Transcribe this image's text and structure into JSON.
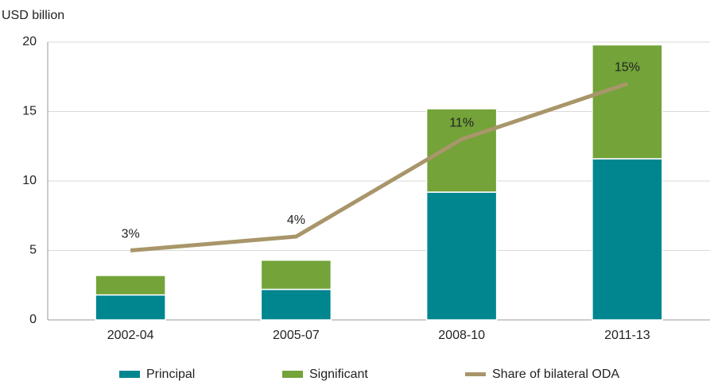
{
  "chart_data": {
    "type": "bar",
    "stacked": true,
    "y_label": "USD billion",
    "categories": [
      "2002-04",
      "2005-07",
      "2008-10",
      "2011-13"
    ],
    "series": [
      {
        "name": "Principal",
        "color": "#00868f",
        "values": [
          1.8,
          2.2,
          9.2,
          11.6
        ]
      },
      {
        "name": "Significant",
        "color": "#73a339",
        "values": [
          1.4,
          2.1,
          6.0,
          8.2
        ]
      },
      {
        "name": "Share of bilateral ODA",
        "color": "#a8966a",
        "type": "line",
        "axis": "y2",
        "values": [
          3,
          4,
          11,
          15
        ],
        "value_labels": [
          "3%",
          "4%",
          "11%",
          "15%"
        ]
      }
    ],
    "ylim": [
      0,
      20
    ],
    "yticks": [
      0,
      5,
      10,
      15,
      20
    ],
    "y2lim": [
      -2,
      18
    ],
    "grid": true,
    "legend": "bottom"
  }
}
